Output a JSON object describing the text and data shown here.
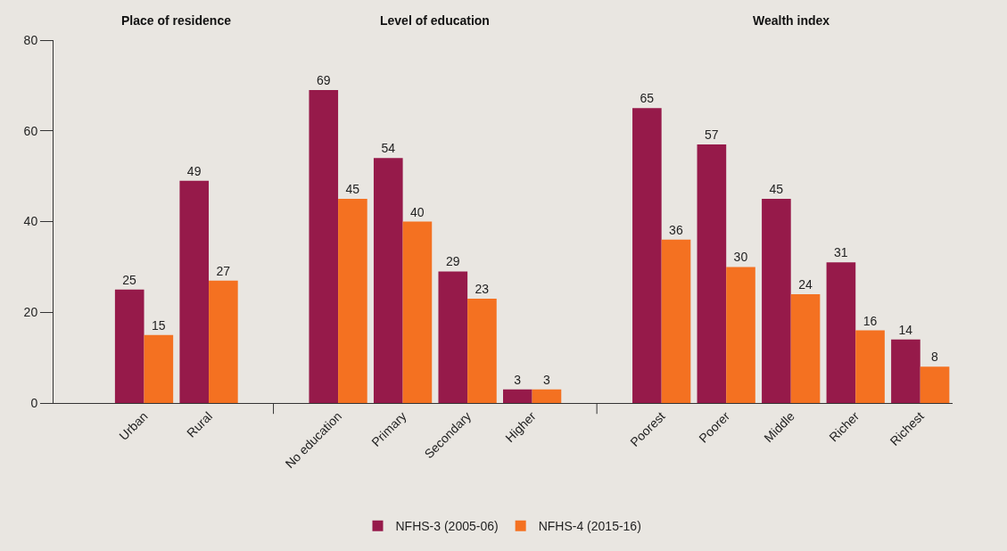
{
  "chart_data": {
    "type": "bar",
    "categories": [
      null,
      "Urban",
      "Rural",
      null,
      "No education",
      "Primary",
      "Secondary",
      "Higher",
      null,
      "Poorest",
      "Poorer",
      "Middle",
      "Richer",
      "Richest"
    ],
    "series": [
      {
        "name": "NFHS-3 (2005-06)",
        "color": "#961a4a",
        "values": [
          null,
          25,
          49,
          null,
          69,
          54,
          29,
          3,
          null,
          65,
          57,
          45,
          31,
          14
        ]
      },
      {
        "name": "NFHS-4 (2015-16)",
        "color": "#f47121",
        "values": [
          null,
          15,
          27,
          null,
          45,
          40,
          23,
          3,
          null,
          36,
          30,
          24,
          16,
          8
        ]
      }
    ],
    "annotations": [
      "Place of residence",
      "Level of education",
      "Wealth index"
    ],
    "ylim": [
      0,
      80
    ],
    "yticks": [
      0,
      20,
      40,
      60,
      80
    ],
    "grid": false,
    "legend": "bottom",
    "data_labels": true
  }
}
